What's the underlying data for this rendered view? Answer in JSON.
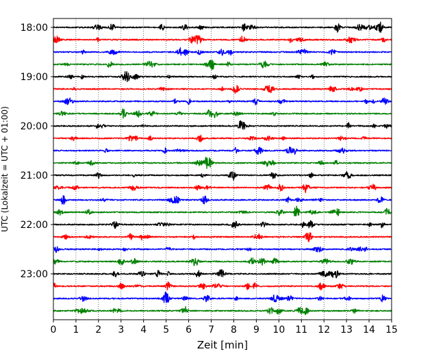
{
  "chart_data": {
    "type": "line",
    "title": "",
    "xlabel": "Zeit  [min]",
    "ylabel": "UTC (Lokalzeit = UTC + 01:00)",
    "xlim": [
      0,
      15
    ],
    "x_ticks": [
      0,
      1,
      2,
      3,
      4,
      5,
      6,
      7,
      8,
      9,
      10,
      11,
      12,
      13,
      14,
      15
    ],
    "y_tick_labels": [
      "18:00",
      "19:00",
      "20:00",
      "21:00",
      "22:00",
      "23:00"
    ],
    "grid": "vertical-dotted",
    "trace_interval_min": 15,
    "trace_colors": [
      "#000000",
      "#ff0000",
      "#0000ff",
      "#008000"
    ],
    "series": [
      {
        "label": "18:00",
        "color": "#000000"
      },
      {
        "label": "18:15",
        "color": "#ff0000"
      },
      {
        "label": "18:30",
        "color": "#0000ff"
      },
      {
        "label": "18:45",
        "color": "#008000"
      },
      {
        "label": "19:00",
        "color": "#000000"
      },
      {
        "label": "19:15",
        "color": "#ff0000"
      },
      {
        "label": "19:30",
        "color": "#0000ff"
      },
      {
        "label": "19:45",
        "color": "#008000"
      },
      {
        "label": "20:00",
        "color": "#000000"
      },
      {
        "label": "20:15",
        "color": "#ff0000"
      },
      {
        "label": "20:30",
        "color": "#0000ff"
      },
      {
        "label": "20:45",
        "color": "#008000"
      },
      {
        "label": "21:00",
        "color": "#000000"
      },
      {
        "label": "21:15",
        "color": "#ff0000"
      },
      {
        "label": "21:30",
        "color": "#0000ff"
      },
      {
        "label": "21:45",
        "color": "#008000"
      },
      {
        "label": "22:00",
        "color": "#000000"
      },
      {
        "label": "22:15",
        "color": "#ff0000"
      },
      {
        "label": "22:30",
        "color": "#0000ff"
      },
      {
        "label": "22:45",
        "color": "#008000"
      },
      {
        "label": "23:00",
        "color": "#000000"
      },
      {
        "label": "23:15",
        "color": "#ff0000"
      },
      {
        "label": "23:30",
        "color": "#0000ff"
      },
      {
        "label": "23:45",
        "color": "#008000"
      }
    ],
    "events": [
      {
        "trace": 0,
        "t": 2.6,
        "amp": 1.8
      },
      {
        "trace": 0,
        "t": 12.6,
        "amp": 2.0
      },
      {
        "trace": 0,
        "t": 14.5,
        "amp": 1.8
      },
      {
        "trace": 1,
        "t": 8.4,
        "amp": 1.6
      },
      {
        "trace": 2,
        "t": 5.6,
        "amp": 2.2
      },
      {
        "trace": 3,
        "t": 7.0,
        "amp": 1.7
      },
      {
        "trace": 5,
        "t": 8.1,
        "amp": 2.2
      },
      {
        "trace": 6,
        "t": 14.7,
        "amp": 1.8
      },
      {
        "trace": 7,
        "t": 3.1,
        "amp": 2.0
      },
      {
        "trace": 9,
        "t": 6.5,
        "amp": 1.7
      },
      {
        "trace": 11,
        "t": 6.8,
        "amp": 1.8
      },
      {
        "trace": 13,
        "t": 11.2,
        "amp": 2.3
      },
      {
        "trace": 14,
        "t": 6.7,
        "amp": 1.7
      },
      {
        "trace": 14,
        "t": 14.5,
        "amp": 1.6
      },
      {
        "trace": 15,
        "t": 10.8,
        "amp": 1.9
      },
      {
        "trace": 15,
        "t": 14.8,
        "amp": 1.7
      },
      {
        "trace": 16,
        "t": 11.4,
        "amp": 1.7
      },
      {
        "trace": 17,
        "t": 11.3,
        "amp": 2.5
      },
      {
        "trace": 19,
        "t": 8.8,
        "amp": 1.6
      },
      {
        "trace": 20,
        "t": 3.9,
        "amp": 1.7
      },
      {
        "trace": 21,
        "t": 5.1,
        "amp": 1.8
      },
      {
        "trace": 22,
        "t": 5.0,
        "amp": 3.0
      },
      {
        "trace": 22,
        "t": 6.8,
        "amp": 1.6
      },
      {
        "trace": 23,
        "t": 10.0,
        "amp": 1.5
      }
    ]
  }
}
